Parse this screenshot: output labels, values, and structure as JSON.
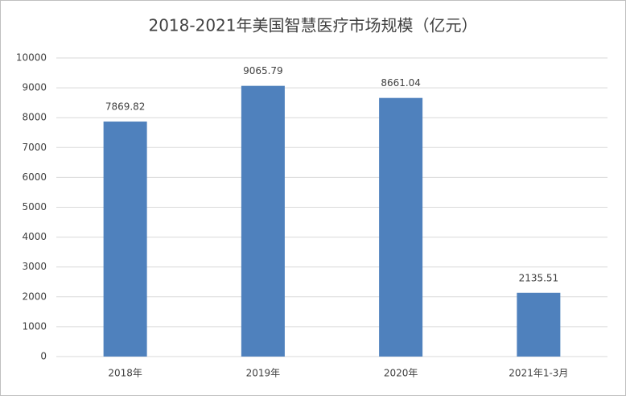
{
  "chart_data": {
    "type": "bar",
    "title": "2018-2021年美国智慧医疗市场规模（亿元）",
    "categories": [
      "2018年",
      "2019年",
      "2020年",
      "2021年1-3月"
    ],
    "values": [
      7869.82,
      9065.79,
      8661.04,
      2135.51
    ],
    "color": "#4f81bd",
    "ylim": [
      0,
      10000
    ],
    "yticks": [
      0,
      1000,
      2000,
      3000,
      4000,
      5000,
      6000,
      7000,
      8000,
      9000,
      10000
    ],
    "grid": true
  }
}
